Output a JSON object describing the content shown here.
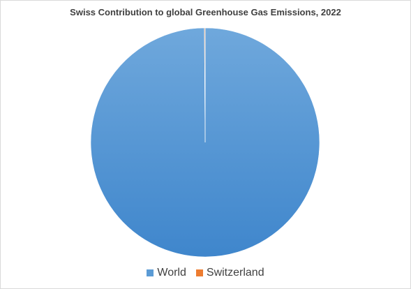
{
  "chart_data": {
    "type": "pie",
    "title": "Swiss Contribution to global Greenhouse Gas Emissions, 2022",
    "categories": [
      "World",
      "Switzerland"
    ],
    "values": [
      99.9,
      0.1
    ],
    "colors": [
      "#5b9bd5",
      "#ed7d31"
    ],
    "legend_position": "bottom"
  }
}
